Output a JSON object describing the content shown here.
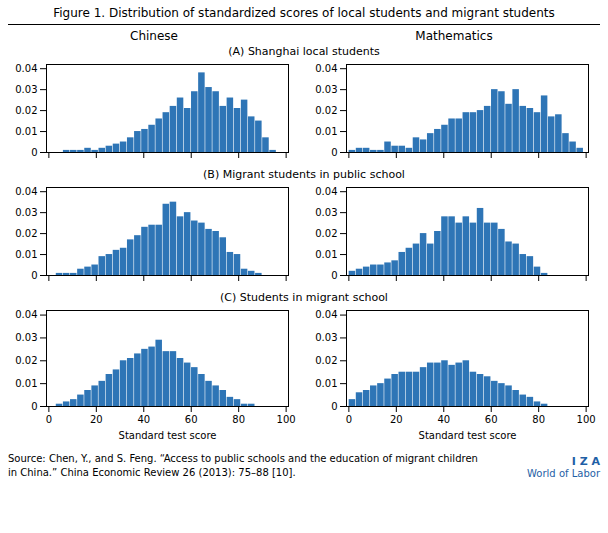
{
  "title": "Figure 1. Distribution of standardized scores of local students and migrant students",
  "column_labels": [
    "Chinese",
    "Mathematics"
  ],
  "row_labels": [
    "(A) Shanghai local students",
    "(B) Migrant students in public school",
    "(C) Students in migrant school"
  ],
  "annotations": [
    "Source: Chen, Y., and S. Feng. “Access to public schools and the education of migrant children in China.” China Economic Review 26 (2013): 75–88 [10].",
    "I Z A",
    "World of Labor"
  ],
  "chart_data": [
    {
      "type": "histogram",
      "color": "#2e75b6",
      "xlim": [
        -1,
        101
      ],
      "ylim": [
        0,
        0.042
      ],
      "xticks": [
        0,
        20,
        40,
        60,
        80,
        100
      ],
      "yticks": [
        0,
        0.01,
        0.02,
        0.03,
        0.04
      ],
      "tick_labels": "y",
      "bins": [
        0,
        3,
        6,
        9,
        12,
        15,
        18,
        21,
        24,
        27,
        30,
        33,
        36,
        39,
        42,
        45,
        48,
        51,
        54,
        57,
        60,
        63,
        66,
        69,
        72,
        75,
        78,
        81,
        84,
        87,
        90,
        93,
        96,
        99
      ],
      "values": [
        0.0,
        0.0,
        0.001,
        0.001,
        0.001,
        0.002,
        0.001,
        0.002,
        0.003,
        0.004,
        0.005,
        0.007,
        0.01,
        0.011,
        0.013,
        0.016,
        0.019,
        0.022,
        0.026,
        0.021,
        0.029,
        0.038,
        0.031,
        0.029,
        0.022,
        0.026,
        0.021,
        0.025,
        0.017,
        0.015,
        0.007,
        0.001,
        0.0
      ]
    },
    {
      "type": "histogram",
      "color": "#2e75b6",
      "xlim": [
        -1,
        101
      ],
      "ylim": [
        0,
        0.042
      ],
      "xticks": [
        0,
        20,
        40,
        60,
        80,
        100
      ],
      "yticks": [
        0,
        0.01,
        0.02,
        0.03,
        0.04
      ],
      "tick_labels": "y",
      "bins": [
        0,
        3,
        6,
        9,
        12,
        15,
        18,
        21,
        24,
        27,
        30,
        33,
        36,
        39,
        42,
        45,
        48,
        51,
        54,
        57,
        60,
        63,
        66,
        69,
        72,
        75,
        78,
        81,
        84,
        87,
        90,
        93,
        96,
        99
      ],
      "values": [
        0.001,
        0.002,
        0.002,
        0.001,
        0.001,
        0.005,
        0.003,
        0.003,
        0.002,
        0.007,
        0.006,
        0.009,
        0.011,
        0.013,
        0.016,
        0.016,
        0.019,
        0.019,
        0.02,
        0.022,
        0.03,
        0.029,
        0.023,
        0.03,
        0.022,
        0.021,
        0.019,
        0.027,
        0.017,
        0.018,
        0.009,
        0.005,
        0.002
      ]
    },
    {
      "type": "histogram",
      "color": "#2e75b6",
      "xlim": [
        -1,
        101
      ],
      "ylim": [
        0,
        0.042
      ],
      "xticks": [
        0,
        20,
        40,
        60,
        80,
        100
      ],
      "yticks": [
        0,
        0.01,
        0.02,
        0.03,
        0.04
      ],
      "tick_labels": "y",
      "bins": [
        0,
        3,
        6,
        9,
        12,
        15,
        18,
        21,
        24,
        27,
        30,
        33,
        36,
        39,
        42,
        45,
        48,
        51,
        54,
        57,
        60,
        63,
        66,
        69,
        72,
        75,
        78,
        81,
        84,
        87,
        90,
        93,
        96,
        99
      ],
      "values": [
        0.0,
        0.001,
        0.001,
        0.001,
        0.003,
        0.004,
        0.005,
        0.009,
        0.01,
        0.012,
        0.013,
        0.017,
        0.019,
        0.023,
        0.024,
        0.024,
        0.034,
        0.035,
        0.028,
        0.03,
        0.026,
        0.025,
        0.022,
        0.021,
        0.018,
        0.011,
        0.01,
        0.003,
        0.002,
        0.001,
        0.0,
        0.0,
        0.0
      ]
    },
    {
      "type": "histogram",
      "color": "#2e75b6",
      "xlim": [
        -1,
        101
      ],
      "ylim": [
        0,
        0.042
      ],
      "xticks": [
        0,
        20,
        40,
        60,
        80,
        100
      ],
      "yticks": [
        0,
        0.01,
        0.02,
        0.03,
        0.04
      ],
      "tick_labels": "y",
      "bins": [
        0,
        3,
        6,
        9,
        12,
        15,
        18,
        21,
        24,
        27,
        30,
        33,
        36,
        39,
        42,
        45,
        48,
        51,
        54,
        57,
        60,
        63,
        66,
        69,
        72,
        75,
        78,
        81,
        84,
        87,
        90,
        93,
        96,
        99
      ],
      "values": [
        0.002,
        0.003,
        0.004,
        0.005,
        0.005,
        0.006,
        0.007,
        0.011,
        0.013,
        0.015,
        0.02,
        0.015,
        0.021,
        0.028,
        0.028,
        0.025,
        0.028,
        0.025,
        0.032,
        0.025,
        0.025,
        0.022,
        0.016,
        0.015,
        0.01,
        0.009,
        0.004,
        0.001,
        0.0,
        0.0,
        0.0,
        0.0,
        0.0
      ]
    },
    {
      "type": "histogram",
      "color": "#2e75b6",
      "xlim": [
        -1,
        101
      ],
      "ylim": [
        0,
        0.042
      ],
      "xticks": [
        0,
        20,
        40,
        60,
        80,
        100
      ],
      "yticks": [
        0,
        0.01,
        0.02,
        0.03,
        0.04
      ],
      "xlabel": "Standard test score",
      "bins": [
        0,
        3,
        6,
        9,
        12,
        15,
        18,
        21,
        24,
        27,
        30,
        33,
        36,
        39,
        42,
        45,
        48,
        51,
        54,
        57,
        60,
        63,
        66,
        69,
        72,
        75,
        78,
        81,
        84,
        87,
        90,
        93,
        96,
        99
      ],
      "values": [
        0.0,
        0.001,
        0.002,
        0.003,
        0.005,
        0.007,
        0.009,
        0.011,
        0.014,
        0.016,
        0.02,
        0.021,
        0.023,
        0.025,
        0.026,
        0.029,
        0.024,
        0.024,
        0.021,
        0.019,
        0.017,
        0.014,
        0.011,
        0.009,
        0.007,
        0.004,
        0.003,
        0.001,
        0.001,
        0.0,
        0.0,
        0.0,
        0.0
      ]
    },
    {
      "type": "histogram",
      "color": "#2e75b6",
      "xlim": [
        -1,
        101
      ],
      "ylim": [
        0,
        0.042
      ],
      "xticks": [
        0,
        20,
        40,
        60,
        80,
        100
      ],
      "yticks": [
        0,
        0.01,
        0.02,
        0.03,
        0.04
      ],
      "xlabel": "Standard test score",
      "bins": [
        0,
        3,
        6,
        9,
        12,
        15,
        18,
        21,
        24,
        27,
        30,
        33,
        36,
        39,
        42,
        45,
        48,
        51,
        54,
        57,
        60,
        63,
        66,
        69,
        72,
        75,
        78,
        81,
        84,
        87,
        90,
        93,
        96,
        99
      ],
      "values": [
        0.003,
        0.006,
        0.007,
        0.009,
        0.01,
        0.012,
        0.014,
        0.015,
        0.015,
        0.015,
        0.017,
        0.019,
        0.019,
        0.02,
        0.018,
        0.019,
        0.02,
        0.015,
        0.014,
        0.013,
        0.011,
        0.01,
        0.009,
        0.007,
        0.005,
        0.004,
        0.002,
        0.001,
        0.0,
        0.0,
        0.0,
        0.0,
        0.0
      ]
    }
  ]
}
